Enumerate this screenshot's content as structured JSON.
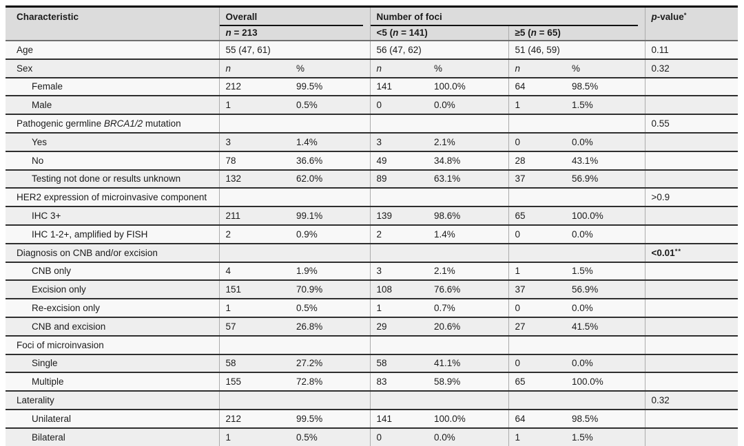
{
  "colors": {
    "header_bg": "#dcdcdc",
    "row_light": "#f8f8f8",
    "row_dark": "#eeeeee",
    "rule": "#2e2e2e",
    "text": "#1b1b1b"
  },
  "table": {
    "header": {
      "characteristic": "Characteristic",
      "overall": {
        "label": "Overall",
        "sub": {
          "pre": "",
          "it": "n",
          "post": " = 213"
        }
      },
      "foci": {
        "label": "Number of foci",
        "sub_lt5": {
          "pre": "<5 (",
          "it": "n",
          "post": " = 141)"
        },
        "sub_ge5": {
          "pre": "≥5 (",
          "it": "n",
          "post": " = 65)"
        }
      },
      "pvalue": {
        "it": "p",
        "rest": "-value",
        "sup": "*"
      }
    },
    "rows": [
      {
        "label": {
          "pre": "Age",
          "it": "",
          "post": ""
        },
        "indent": false,
        "span2": true,
        "cells": [
          "55 (47, 61)",
          "56 (47, 62)",
          "51 (46, 59)"
        ],
        "p": {
          "text": "0.11",
          "sup": "",
          "bold": false
        }
      },
      {
        "label": {
          "pre": "Sex",
          "it": "",
          "post": ""
        },
        "indent": false,
        "italic_cells": true,
        "cells": [
          "n",
          "%",
          "n",
          "%",
          "n",
          "%"
        ],
        "p": {
          "text": "0.32",
          "sup": "",
          "bold": false
        }
      },
      {
        "label": {
          "pre": "Female",
          "it": "",
          "post": ""
        },
        "indent": true,
        "cells": [
          "212",
          "99.5%",
          "141",
          "100.0%",
          "64",
          "98.5%"
        ],
        "p": {
          "text": "",
          "sup": "",
          "bold": false
        }
      },
      {
        "label": {
          "pre": "Male",
          "it": "",
          "post": ""
        },
        "indent": true,
        "cells": [
          "1",
          "0.5%",
          "0",
          "0.0%",
          "1",
          "1.5%"
        ],
        "p": {
          "text": "",
          "sup": "",
          "bold": false
        }
      },
      {
        "label": {
          "pre": "Pathogenic germline ",
          "it": "BRCA1/2",
          "post": " mutation"
        },
        "indent": false,
        "cells": [
          "",
          "",
          "",
          "",
          "",
          ""
        ],
        "p": {
          "text": "0.55",
          "sup": "",
          "bold": false
        }
      },
      {
        "label": {
          "pre": "Yes",
          "it": "",
          "post": ""
        },
        "indent": true,
        "cells": [
          "3",
          "1.4%",
          "3",
          "2.1%",
          "0",
          "0.0%"
        ],
        "p": {
          "text": "",
          "sup": "",
          "bold": false
        }
      },
      {
        "label": {
          "pre": "No",
          "it": "",
          "post": ""
        },
        "indent": true,
        "cells": [
          "78",
          "36.6%",
          "49",
          "34.8%",
          "28",
          "43.1%"
        ],
        "p": {
          "text": "",
          "sup": "",
          "bold": false
        }
      },
      {
        "label": {
          "pre": "Testing not done or results unknown",
          "it": "",
          "post": ""
        },
        "indent": true,
        "cells": [
          "132",
          "62.0%",
          "89",
          "63.1%",
          "37",
          "56.9%"
        ],
        "p": {
          "text": "",
          "sup": "",
          "bold": false
        }
      },
      {
        "label": {
          "pre": "HER2 expression of microinvasive component",
          "it": "",
          "post": ""
        },
        "indent": false,
        "cells": [
          "",
          "",
          "",
          "",
          "",
          ""
        ],
        "p": {
          "text": ">0.9",
          "sup": "",
          "bold": false
        }
      },
      {
        "label": {
          "pre": "IHC 3+",
          "it": "",
          "post": ""
        },
        "indent": true,
        "cells": [
          "211",
          "99.1%",
          "139",
          "98.6%",
          "65",
          "100.0%"
        ],
        "p": {
          "text": "",
          "sup": "",
          "bold": false
        }
      },
      {
        "label": {
          "pre": "IHC 1-2+, amplified by FISH",
          "it": "",
          "post": ""
        },
        "indent": true,
        "cells": [
          "2",
          "0.9%",
          "2",
          "1.4%",
          "0",
          "0.0%"
        ],
        "p": {
          "text": "",
          "sup": "",
          "bold": false
        }
      },
      {
        "label": {
          "pre": "Diagnosis on CNB and/or excision",
          "it": "",
          "post": ""
        },
        "indent": false,
        "cells": [
          "",
          "",
          "",
          "",
          "",
          ""
        ],
        "p": {
          "text": "<0.01",
          "sup": "**",
          "bold": true
        }
      },
      {
        "label": {
          "pre": "CNB only",
          "it": "",
          "post": ""
        },
        "indent": true,
        "cells": [
          "4",
          "1.9%",
          "3",
          "2.1%",
          "1",
          "1.5%"
        ],
        "p": {
          "text": "",
          "sup": "",
          "bold": false
        }
      },
      {
        "label": {
          "pre": "Excision only",
          "it": "",
          "post": ""
        },
        "indent": true,
        "cells": [
          "151",
          "70.9%",
          "108",
          "76.6%",
          "37",
          "56.9%"
        ],
        "p": {
          "text": "",
          "sup": "",
          "bold": false
        }
      },
      {
        "label": {
          "pre": "Re-excision only",
          "it": "",
          "post": ""
        },
        "indent": true,
        "cells": [
          "1",
          "0.5%",
          "1",
          "0.7%",
          "0",
          "0.0%"
        ],
        "p": {
          "text": "",
          "sup": "",
          "bold": false
        }
      },
      {
        "label": {
          "pre": "CNB and excision",
          "it": "",
          "post": ""
        },
        "indent": true,
        "cells": [
          "57",
          "26.8%",
          "29",
          "20.6%",
          "27",
          "41.5%"
        ],
        "p": {
          "text": "",
          "sup": "",
          "bold": false
        }
      },
      {
        "label": {
          "pre": "Foci of microinvasion",
          "it": "",
          "post": ""
        },
        "indent": false,
        "cells": [
          "",
          "",
          "",
          "",
          "",
          ""
        ],
        "p": {
          "text": "",
          "sup": "",
          "bold": false
        }
      },
      {
        "label": {
          "pre": "Single",
          "it": "",
          "post": ""
        },
        "indent": true,
        "cells": [
          "58",
          "27.2%",
          "58",
          "41.1%",
          "0",
          "0.0%"
        ],
        "p": {
          "text": "",
          "sup": "",
          "bold": false
        }
      },
      {
        "label": {
          "pre": "Multiple",
          "it": "",
          "post": ""
        },
        "indent": true,
        "cells": [
          "155",
          "72.8%",
          "83",
          "58.9%",
          "65",
          "100.0%"
        ],
        "p": {
          "text": "",
          "sup": "",
          "bold": false
        }
      },
      {
        "label": {
          "pre": "Laterality",
          "it": "",
          "post": ""
        },
        "indent": false,
        "cells": [
          "",
          "",
          "",
          "",
          "",
          ""
        ],
        "p": {
          "text": "0.32",
          "sup": "",
          "bold": false
        }
      },
      {
        "label": {
          "pre": "Unilateral",
          "it": "",
          "post": ""
        },
        "indent": true,
        "cells": [
          "212",
          "99.5%",
          "141",
          "100.0%",
          "64",
          "98.5%"
        ],
        "p": {
          "text": "",
          "sup": "",
          "bold": false
        }
      },
      {
        "label": {
          "pre": "Bilateral",
          "it": "",
          "post": ""
        },
        "indent": true,
        "cells": [
          "1",
          "0.5%",
          "0",
          "0.0%",
          "1",
          "1.5%"
        ],
        "p": {
          "text": "",
          "sup": "",
          "bold": false
        }
      }
    ]
  }
}
